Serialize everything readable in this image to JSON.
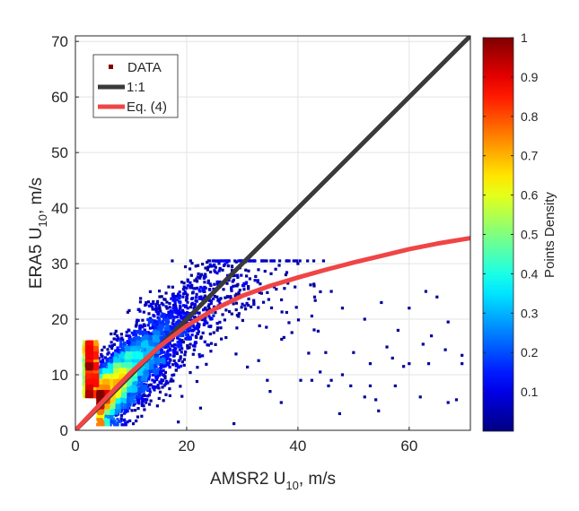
{
  "chart_data": {
    "type": "scatter",
    "xlabel": {
      "main": "AMSR2 U",
      "sub": "10",
      "tail": ", m/s"
    },
    "ylabel": {
      "main": "ERA5 U",
      "sub": "10",
      "tail": ", m/s"
    },
    "xlim": [
      0,
      71
    ],
    "ylim": [
      0,
      71
    ],
    "xticks": [
      "0",
      "20",
      "40",
      "60"
    ],
    "xtick_values": [
      0,
      20,
      40,
      60
    ],
    "yticks": [
      "0",
      "10",
      "20",
      "30",
      "40",
      "50",
      "60",
      "70"
    ],
    "ytick_values": [
      0,
      10,
      20,
      30,
      40,
      50,
      60,
      70
    ],
    "grid": true,
    "legend": {
      "placement": "top-left",
      "entries": [
        {
          "label": "DATA",
          "type": "marker",
          "color": "#800000"
        },
        {
          "label": "1:1",
          "type": "line",
          "color": "#3a3a3a"
        },
        {
          "label": "Eq. (4)",
          "type": "line",
          "color": "#f04545"
        }
      ]
    },
    "series": [
      {
        "name": "DATA",
        "type": "scatter",
        "color_by": "density",
        "colormap": "jet",
        "dense_core_center": [
          9,
          10
        ],
        "sparse_points": [
          [
            18.5,
            1.5
          ],
          [
            28.5,
            1.2
          ],
          [
            22.5,
            4
          ],
          [
            35,
            7
          ],
          [
            37,
            5
          ],
          [
            47.5,
            3
          ],
          [
            54.5,
            3.5
          ],
          [
            52,
            6
          ],
          [
            54,
            5.5
          ],
          [
            62,
            6
          ],
          [
            67,
            5
          ],
          [
            68.5,
            5.5
          ],
          [
            34.5,
            9
          ],
          [
            40.5,
            9
          ],
          [
            42.5,
            9
          ],
          [
            46,
            9
          ],
          [
            49.5,
            8
          ],
          [
            53,
            8
          ],
          [
            57.5,
            8
          ],
          [
            45.5,
            8
          ],
          [
            48,
            10
          ],
          [
            60,
            12
          ],
          [
            63.5,
            12
          ],
          [
            69.5,
            13.5
          ],
          [
            69.5,
            12
          ],
          [
            57,
            13
          ],
          [
            53,
            12
          ],
          [
            44,
            10.5
          ],
          [
            59,
            11.5
          ],
          [
            66.5,
            14.5
          ],
          [
            45,
            14
          ],
          [
            50,
            14
          ],
          [
            56,
            15
          ],
          [
            62.5,
            15.5
          ],
          [
            64,
            17
          ],
          [
            67,
            19.5
          ],
          [
            58,
            18
          ],
          [
            52,
            20
          ],
          [
            48,
            22
          ],
          [
            55,
            23
          ],
          [
            60,
            22
          ],
          [
            63,
            25
          ],
          [
            65,
            24
          ],
          [
            43,
            24
          ],
          [
            46,
            25
          ],
          [
            38,
            27
          ],
          [
            36,
            29
          ],
          [
            40,
            30
          ]
        ]
      },
      {
        "name": "1:1",
        "type": "line",
        "x": [
          0,
          71
        ],
        "y": [
          0,
          71
        ],
        "color": "#3a3a3a"
      },
      {
        "name": "Eq. (4)",
        "type": "line",
        "x": [
          0,
          5,
          10,
          15,
          20,
          25,
          30,
          35,
          40,
          45,
          50,
          55,
          60,
          65,
          71
        ],
        "y": [
          0,
          5.3,
          10.4,
          15,
          18.8,
          21.8,
          24.2,
          26,
          27.5,
          28.9,
          30.2,
          31.4,
          32.6,
          33.6,
          34.6
        ],
        "color": "#f04545"
      }
    ],
    "colorbar": {
      "label": "Points Density",
      "range": [
        0,
        1
      ],
      "ticks": [
        "0.1",
        "0.2",
        "0.3",
        "0.4",
        "0.5",
        "0.6",
        "0.7",
        "0.8",
        "0.9",
        "1"
      ],
      "tick_values": [
        0.1,
        0.2,
        0.3,
        0.4,
        0.5,
        0.6,
        0.7,
        0.8,
        0.9,
        1
      ],
      "colormap": "jet"
    }
  }
}
